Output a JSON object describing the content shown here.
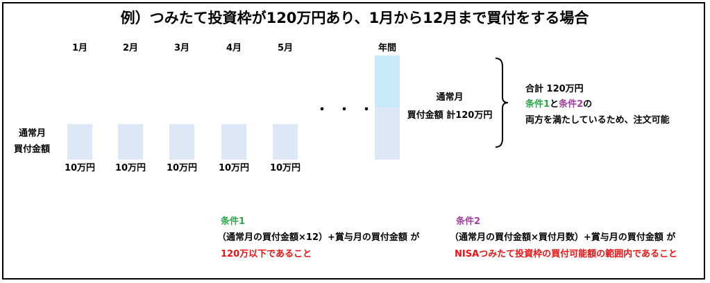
{
  "title": "例）つみたて投資枠が120万円あり、1月から12月まで買付をする場合",
  "months": [
    {
      "month": "1月",
      "amount": "10万円"
    },
    {
      "month": "2月",
      "amount": "10万円"
    },
    {
      "month": "3月",
      "amount": "10万円"
    },
    {
      "month": "4月",
      "amount": "10万円"
    },
    {
      "month": "5月",
      "amount": "10万円"
    }
  ],
  "left_label": [
    "通常月",
    "買付金額"
  ],
  "ellipsis": "・・・",
  "annual": {
    "label": "年間",
    "text": [
      "通常月",
      "買付金額 計120万円"
    ]
  },
  "summary": {
    "total": "合計 120万円",
    "cond1": "条件1",
    "and": "と",
    "cond2": "条件2",
    "of": "の",
    "result": "両方を満たしているため、注文可能"
  },
  "conditions": [
    {
      "title": "条件1",
      "formula": "（通常月の買付金額×12）+賞与月の買付金額 が",
      "requirement": "120万以下であること"
    },
    {
      "title": "条件2",
      "formula": "（通常月の買付金額×買付月数）+賞与月の買付金額 が",
      "requirement": "NISAつみたて投資枠の買付可能額の範囲内であること"
    }
  ]
}
